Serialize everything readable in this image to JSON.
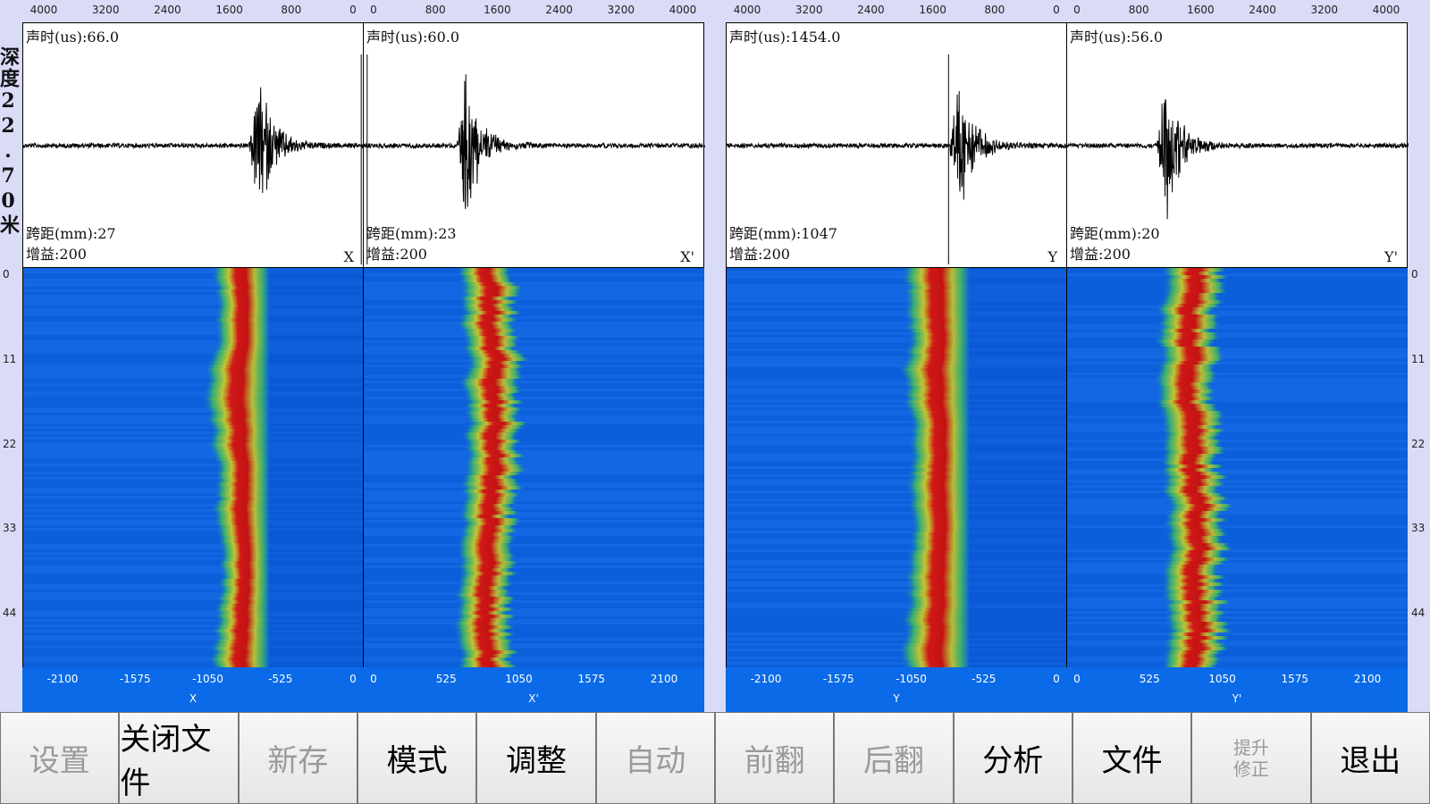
{
  "depth_label": "深度22.70米",
  "depth_ticks": [
    0,
    11,
    22,
    33,
    44
  ],
  "panels": [
    {
      "top_ticks": [
        4000,
        3200,
        2400,
        1600,
        800,
        0
      ],
      "sound_time": "声时(us):66.0",
      "span": "跨距(mm):27",
      "gain": "增益:200",
      "channel": "X",
      "bottom_ticks": [
        -2100,
        -1575,
        -1050,
        -525,
        0
      ],
      "axis_label": "X"
    },
    {
      "top_ticks": [
        0,
        800,
        1600,
        2400,
        3200,
        4000
      ],
      "sound_time": "声时(us):60.0",
      "span": "跨距(mm):23",
      "gain": "增益:200",
      "channel": "X'",
      "bottom_ticks": [
        0,
        525,
        1050,
        1575,
        2100
      ],
      "axis_label": "X'"
    },
    {
      "top_ticks": [
        4000,
        3200,
        2400,
        1600,
        800,
        0
      ],
      "sound_time": "声时(us):1454.0",
      "span": "跨距(mm):1047",
      "gain": "增益:200",
      "channel": "Y",
      "bottom_ticks": [
        -2100,
        -1575,
        -1050,
        -525,
        0
      ],
      "axis_label": "Y"
    },
    {
      "top_ticks": [
        0,
        800,
        1600,
        2400,
        3200,
        4000
      ],
      "sound_time": "声时(us):56.0",
      "span": "跨距(mm):20",
      "gain": "增益:200",
      "channel": "Y'",
      "bottom_ticks": [
        0,
        525,
        1050,
        1575,
        2100
      ],
      "axis_label": "Y'"
    }
  ],
  "buttons": [
    {
      "label": "设置",
      "enabled": false
    },
    {
      "label": "关闭文件",
      "enabled": true
    },
    {
      "label": "新存",
      "enabled": false
    },
    {
      "label": "模式",
      "enabled": true
    },
    {
      "label": "调整",
      "enabled": true
    },
    {
      "label": "自动",
      "enabled": false
    },
    {
      "label": "前翻",
      "enabled": false
    },
    {
      "label": "后翻",
      "enabled": false
    },
    {
      "label": "分析",
      "enabled": true
    },
    {
      "label": "文件",
      "enabled": true
    },
    {
      "label": "提升修正",
      "enabled": false
    },
    {
      "label": "退出",
      "enabled": true
    }
  ]
}
